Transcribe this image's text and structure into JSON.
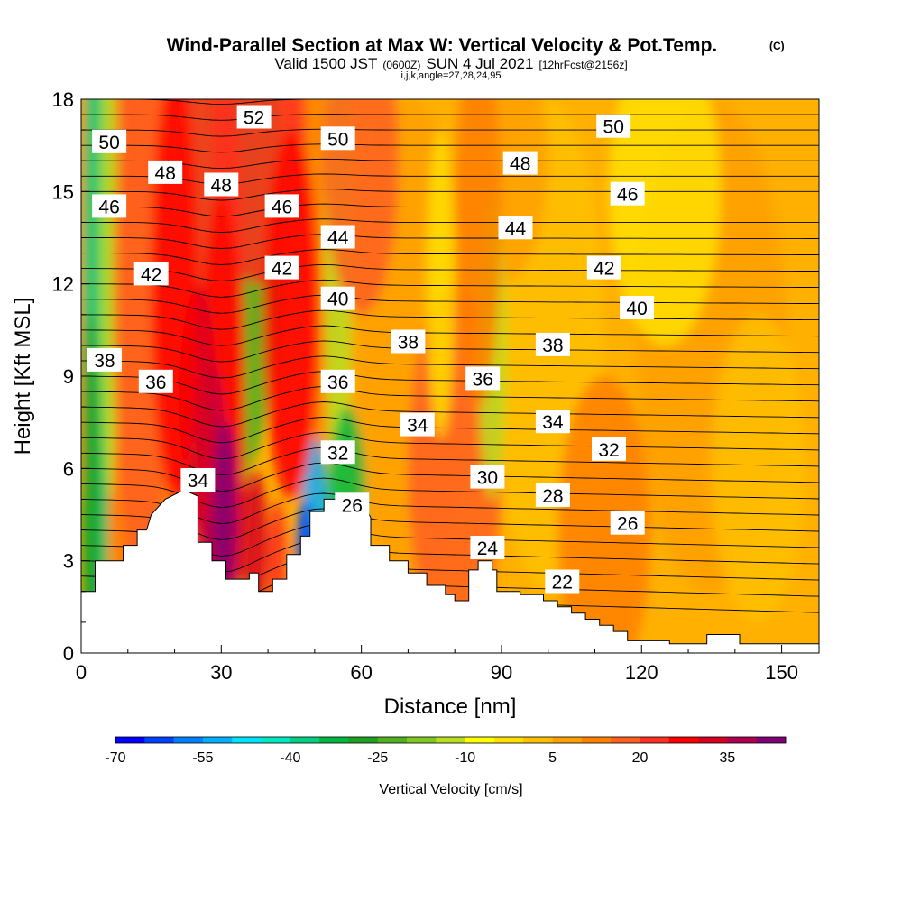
{
  "title": {
    "main": "Wind-Parallel Section at Max W: Vertical Velocity & Pot.Temp.",
    "copyright": "(C)",
    "valid_prefix": "Valid 1500 JST",
    "valid_utc": "(0600Z)",
    "valid_date": "SUN 4 Jul 2021",
    "forecast": "[12hrFcst@2156z]",
    "indices": "i,j,k,angle=27,28,24,95"
  },
  "chart_data": {
    "type": "heatmap",
    "title": "Wind-Parallel Section at Max W: Vertical Velocity & Pot.Temp.",
    "xlabel": "Distance [nm]",
    "ylabel": "Height [Kft MSL]",
    "xlim": [
      0,
      158
    ],
    "ylim": [
      0,
      18
    ],
    "x_ticks": [
      0,
      30,
      60,
      90,
      120,
      150
    ],
    "y_ticks": [
      0,
      3,
      6,
      9,
      12,
      15,
      18
    ],
    "colorbar": {
      "label": "Vertical Velocity [cm/s]",
      "tick_labels": [
        "-70",
        "-55",
        "-40",
        "-25",
        "-10",
        "5",
        "20",
        "35"
      ],
      "tick_values": [
        -70,
        -55,
        -40,
        -25,
        -10,
        5,
        20,
        35
      ],
      "min": -70,
      "max": 45,
      "step": 5,
      "colors": [
        "#0000ff",
        "#0040ff",
        "#0080ff",
        "#00b0ff",
        "#00e5ff",
        "#00e8c0",
        "#00d080",
        "#00b840",
        "#20a020",
        "#50b020",
        "#80c820",
        "#b8e020",
        "#ffff00",
        "#ffe000",
        "#ffc000",
        "#ffa000",
        "#ff8000",
        "#ff6020",
        "#ff3020",
        "#ff0000",
        "#d80020",
        "#b00050",
        "#800078"
      ]
    },
    "terrain_profile": [
      [
        0,
        2
      ],
      [
        3,
        2
      ],
      [
        3,
        3
      ],
      [
        6,
        3
      ],
      [
        9,
        3
      ],
      [
        9,
        3.5
      ],
      [
        12,
        3.5
      ],
      [
        12,
        4
      ],
      [
        14,
        4
      ],
      [
        15,
        4.5
      ],
      [
        18,
        5
      ],
      [
        22,
        5.3
      ],
      [
        25,
        5.1
      ],
      [
        25,
        3.6
      ],
      [
        28,
        3.6
      ],
      [
        28,
        3
      ],
      [
        31,
        3
      ],
      [
        31,
        2.4
      ],
      [
        36,
        2.4
      ],
      [
        36,
        2.6
      ],
      [
        38,
        2.6
      ],
      [
        38,
        2
      ],
      [
        41,
        2
      ],
      [
        41,
        2.4
      ],
      [
        44,
        2.4
      ],
      [
        44,
        3.2
      ],
      [
        47,
        3.2
      ],
      [
        47,
        3.8
      ],
      [
        49,
        3.8
      ],
      [
        49,
        4.6
      ],
      [
        52,
        4.6
      ],
      [
        52,
        5
      ],
      [
        60,
        5
      ],
      [
        62,
        4.4
      ],
      [
        62,
        3.5
      ],
      [
        66,
        3.5
      ],
      [
        66,
        3
      ],
      [
        70,
        3
      ],
      [
        70,
        2.6
      ],
      [
        74,
        2.6
      ],
      [
        74,
        2.2
      ],
      [
        78,
        2.2
      ],
      [
        78,
        1.9
      ],
      [
        80,
        1.9
      ],
      [
        80,
        1.7
      ],
      [
        83,
        1.7
      ],
      [
        83,
        2.7
      ],
      [
        85,
        2.7
      ],
      [
        85,
        3
      ],
      [
        88,
        3
      ],
      [
        88,
        2.7
      ],
      [
        89,
        2.7
      ],
      [
        89,
        2
      ],
      [
        94,
        2
      ],
      [
        94,
        1.9
      ],
      [
        99,
        1.9
      ],
      [
        99,
        1.7
      ],
      [
        102,
        1.7
      ],
      [
        102,
        1.5
      ],
      [
        105,
        1.5
      ],
      [
        105,
        1.3
      ],
      [
        108,
        1.3
      ],
      [
        108,
        1.1
      ],
      [
        111,
        1.1
      ],
      [
        111,
        0.9
      ],
      [
        114,
        0.9
      ],
      [
        114,
        0.7
      ],
      [
        117,
        0.7
      ],
      [
        117,
        0.4
      ],
      [
        126,
        0.4
      ],
      [
        126,
        0.3
      ],
      [
        134,
        0.3
      ],
      [
        134,
        0.6
      ],
      [
        141,
        0.6
      ],
      [
        141,
        0.3
      ],
      [
        158,
        0.3
      ]
    ],
    "theta_contours": [
      {
        "label": "22",
        "x": 103,
        "y": 2.3
      },
      {
        "label": "24",
        "x": 87,
        "y": 3.4
      },
      {
        "label": "26",
        "x": 58,
        "y": 4.8
      },
      {
        "label": "26",
        "x": 117,
        "y": 4.2
      },
      {
        "label": "28",
        "x": 101,
        "y": 5.1
      },
      {
        "label": "30",
        "x": 87,
        "y": 5.7
      },
      {
        "label": "32",
        "x": 55,
        "y": 6.5
      },
      {
        "label": "32",
        "x": 113,
        "y": 6.6
      },
      {
        "label": "34",
        "x": 25,
        "y": 5.6
      },
      {
        "label": "34",
        "x": 72,
        "y": 7.4
      },
      {
        "label": "34",
        "x": 101,
        "y": 7.5
      },
      {
        "label": "36",
        "x": 16,
        "y": 8.8
      },
      {
        "label": "36",
        "x": 55,
        "y": 8.8
      },
      {
        "label": "36",
        "x": 86,
        "y": 8.9
      },
      {
        "label": "38",
        "x": 5,
        "y": 9.5
      },
      {
        "label": "38",
        "x": 70,
        "y": 10.1
      },
      {
        "label": "38",
        "x": 101,
        "y": 10.0
      },
      {
        "label": "40",
        "x": 55,
        "y": 11.5
      },
      {
        "label": "40",
        "x": 119,
        "y": 11.2
      },
      {
        "label": "42",
        "x": 15,
        "y": 12.3
      },
      {
        "label": "42",
        "x": 43,
        "y": 12.5
      },
      {
        "label": "42",
        "x": 112,
        "y": 12.5
      },
      {
        "label": "44",
        "x": 55,
        "y": 13.5
      },
      {
        "label": "44",
        "x": 93,
        "y": 13.8
      },
      {
        "label": "46",
        "x": 6,
        "y": 14.5
      },
      {
        "label": "46",
        "x": 43,
        "y": 14.5
      },
      {
        "label": "46",
        "x": 117,
        "y": 14.9
      },
      {
        "label": "48",
        "x": 18,
        "y": 15.6
      },
      {
        "label": "48",
        "x": 30,
        "y": 15.2
      },
      {
        "label": "48",
        "x": 94,
        "y": 15.9
      },
      {
        "label": "50",
        "x": 6,
        "y": 16.6
      },
      {
        "label": "50",
        "x": 55,
        "y": 16.7
      },
      {
        "label": "50",
        "x": 114,
        "y": 17.1
      },
      {
        "label": "52",
        "x": 37,
        "y": 17.4
      }
    ]
  }
}
